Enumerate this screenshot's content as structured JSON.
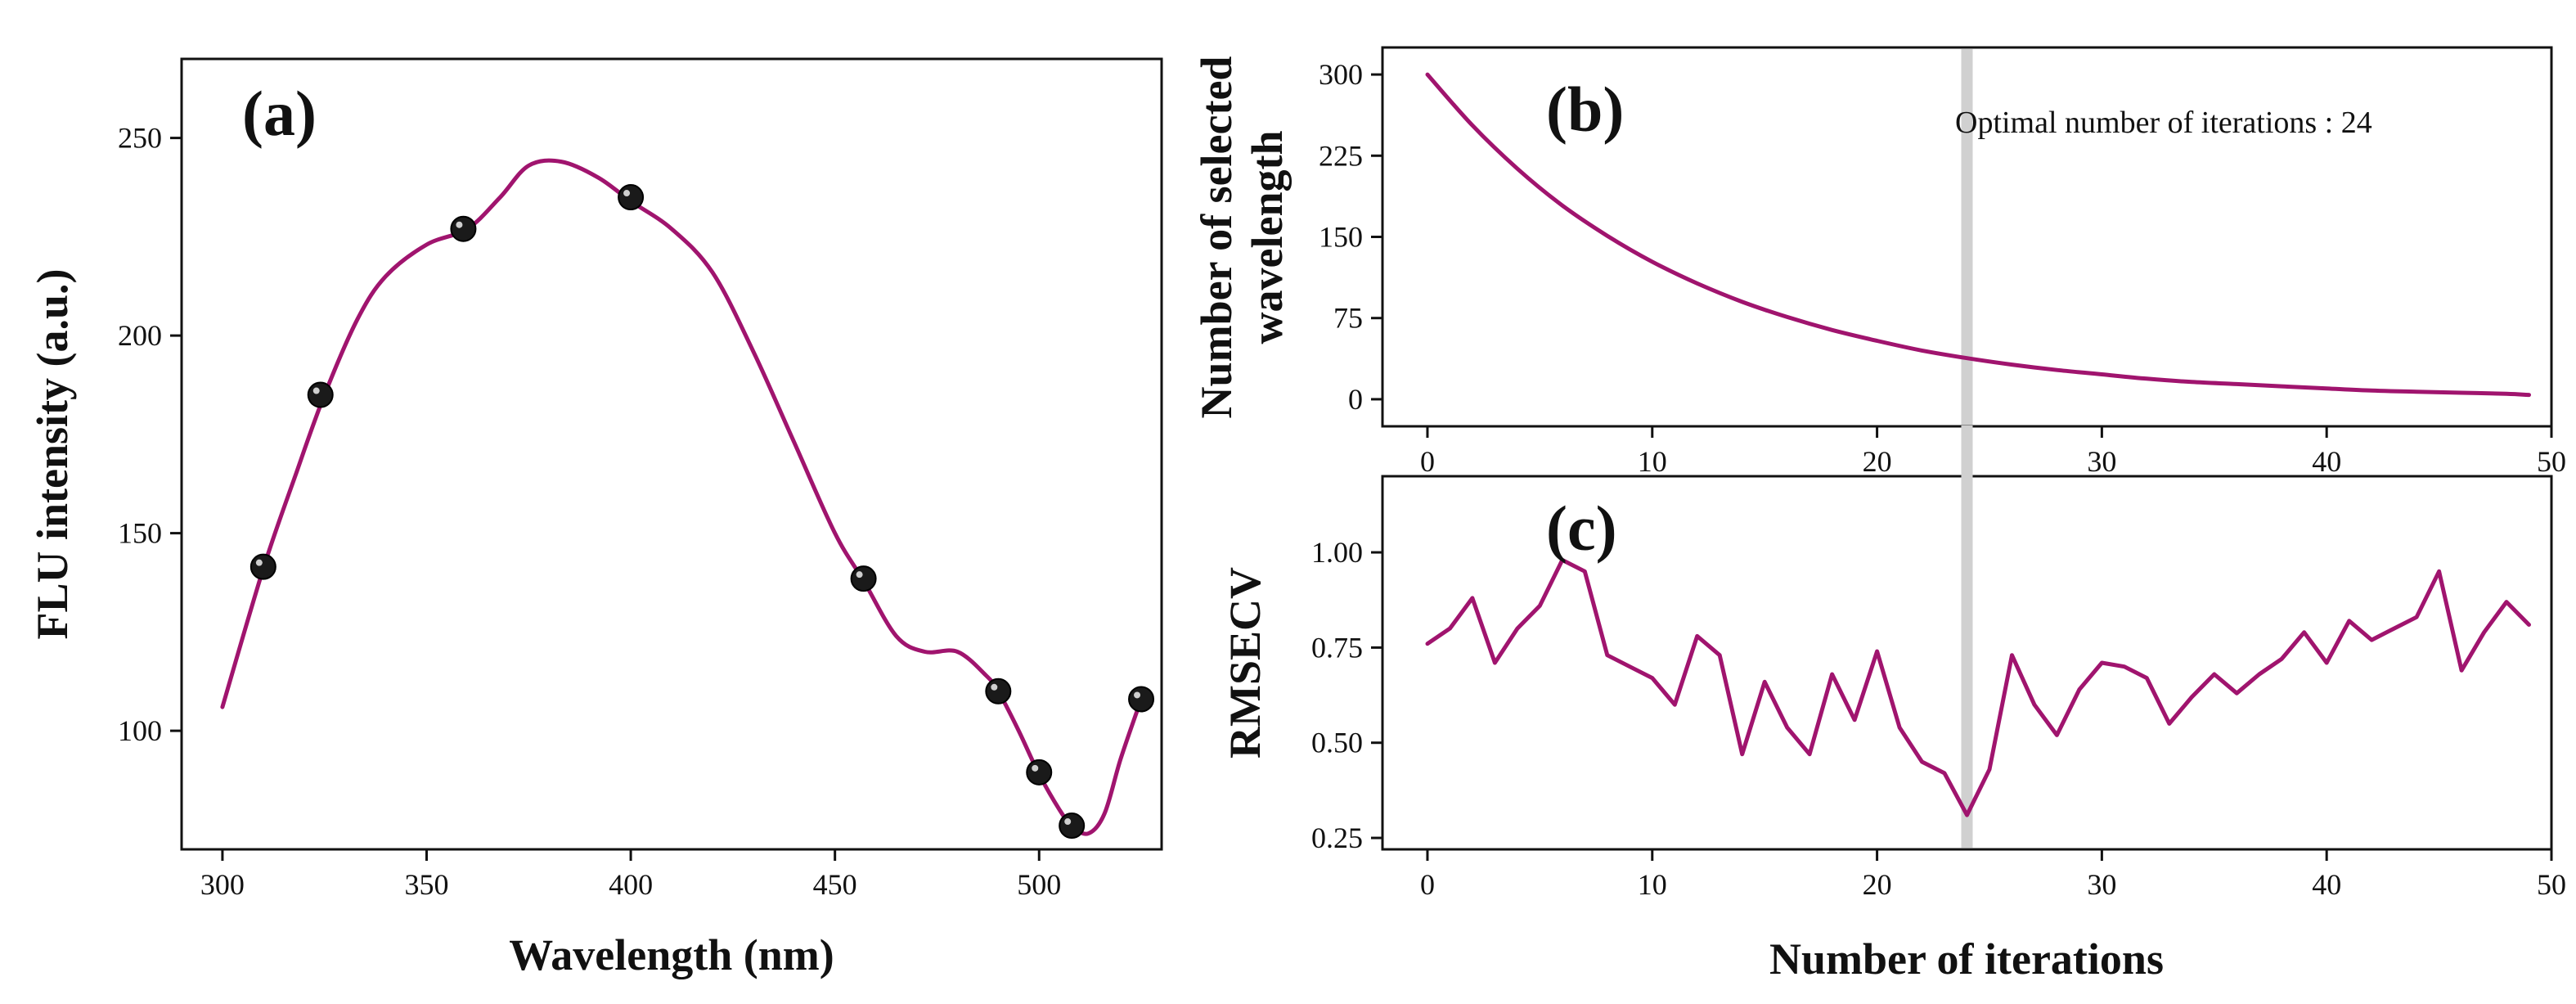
{
  "colors": {
    "series": "#a0146e",
    "marker_fill": "#1a1a1a",
    "marker_highlight": "#cfcfcf",
    "optimal_line": "#d0d0d0"
  },
  "chart_data": [
    {
      "id": "a",
      "type": "line",
      "panel_label": "(a)",
      "xlabel": "Wavelength (nm)",
      "ylabel": "FLU intensity (a.u.)",
      "xlim": [
        290,
        530
      ],
      "ylim": [
        70,
        270
      ],
      "xticks": [
        300,
        350,
        400,
        450,
        500
      ],
      "yticks": [
        100,
        150,
        200,
        250
      ],
      "curve": {
        "x": [
          300,
          310,
          318,
          325,
          333,
          340,
          350,
          360,
          368,
          375,
          383,
          392,
          400,
          410,
          420,
          430,
          440,
          450,
          457,
          465,
          472,
          480,
          487,
          490,
          495,
          500,
          505,
          508,
          512,
          516,
          520,
          525
        ],
        "y": [
          106,
          141,
          165,
          185,
          204,
          215,
          223,
          227,
          235,
          243,
          244,
          240,
          234,
          227,
          216,
          196,
          173,
          150,
          138,
          124,
          120,
          120,
          114,
          110,
          100,
          89,
          80,
          76,
          74,
          79,
          93,
          108
        ]
      },
      "points": {
        "x": [
          310,
          324,
          359,
          400,
          457,
          490,
          500,
          508,
          525
        ],
        "y": [
          141.5,
          185,
          227,
          235,
          138.5,
          110,
          89.5,
          76,
          108
        ]
      }
    },
    {
      "id": "b",
      "type": "line",
      "panel_label": "(b)",
      "ylabel_lines": [
        "Number of selected",
        "wavelength"
      ],
      "annotation": "Optimal number of iterations : 24",
      "xlim": [
        -2,
        50
      ],
      "ylim": [
        -25,
        325
      ],
      "xticks": [
        0,
        10,
        20,
        30,
        40,
        50
      ],
      "yticks": [
        0,
        75,
        150,
        225,
        300
      ],
      "optimal_iteration": 24,
      "curve": {
        "x": [
          0,
          2,
          4,
          6,
          8,
          10,
          12,
          14,
          16,
          18,
          20,
          22,
          24,
          26,
          28,
          30,
          32,
          34,
          36,
          38,
          40,
          42,
          44,
          46,
          48,
          49
        ],
        "y": [
          300,
          253,
          213,
          179,
          151,
          127,
          107,
          90,
          76,
          64,
          54,
          45,
          38,
          32,
          27,
          23,
          19,
          16,
          14,
          12,
          10,
          8,
          7,
          6,
          5,
          4
        ]
      }
    },
    {
      "id": "c",
      "type": "line",
      "panel_label": "(c)",
      "xlabel": "Number of iterations",
      "ylabel": "RMSECV",
      "xlim": [
        -2,
        50
      ],
      "ylim": [
        0.22,
        1.2
      ],
      "xticks": [
        0,
        10,
        20,
        30,
        40,
        50
      ],
      "yticks": [
        "0.25",
        "0.50",
        "0.75",
        "1.00"
      ],
      "optimal_iteration": 24,
      "curve": {
        "x": [
          0,
          1,
          2,
          3,
          4,
          5,
          6,
          7,
          8,
          9,
          10,
          11,
          12,
          13,
          14,
          15,
          16,
          17,
          18,
          19,
          20,
          21,
          22,
          23,
          24,
          25,
          26,
          27,
          28,
          29,
          30,
          31,
          32,
          33,
          34,
          35,
          36,
          37,
          38,
          39,
          40,
          41,
          42,
          43,
          44,
          45,
          46,
          47,
          48,
          49
        ],
        "y": [
          0.76,
          0.8,
          0.88,
          0.71,
          0.8,
          0.86,
          0.98,
          0.95,
          0.73,
          0.7,
          0.67,
          0.6,
          0.78,
          0.73,
          0.47,
          0.66,
          0.54,
          0.47,
          0.68,
          0.56,
          0.74,
          0.54,
          0.45,
          0.42,
          0.31,
          0.43,
          0.73,
          0.6,
          0.52,
          0.64,
          0.71,
          0.7,
          0.67,
          0.55,
          0.62,
          0.68,
          0.63,
          0.68,
          0.72,
          0.79,
          0.71,
          0.82,
          0.77,
          0.8,
          0.83,
          0.95,
          0.69,
          0.79,
          0.87,
          0.81
        ]
      }
    }
  ]
}
